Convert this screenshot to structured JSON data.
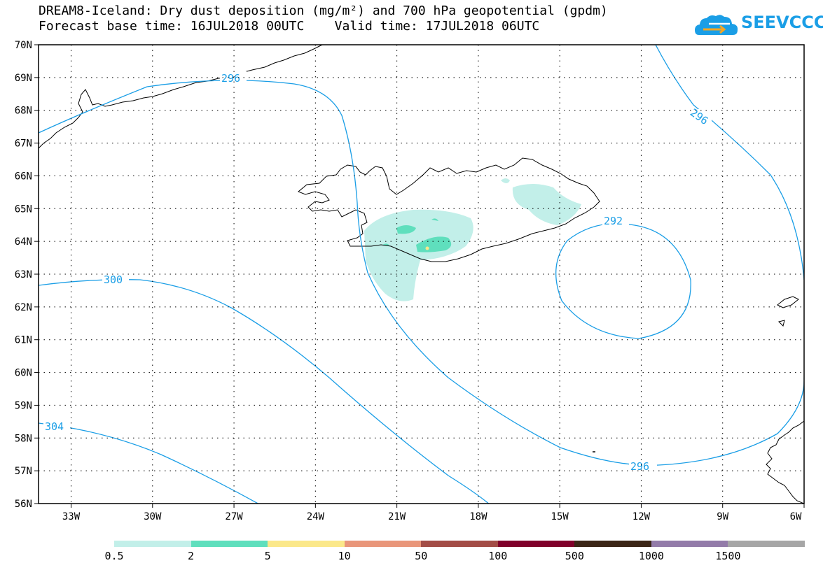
{
  "header": {
    "title_line1": "DREAM8-Iceland: Dry dust deposition (mg/m²) and 700 hPa geopotential (gpdm)",
    "title_line2": "Forecast base time: 16JUL2018 00UTC    Valid time: 17JUL2018 06UTC"
  },
  "logo": {
    "text": "SEEVCCC",
    "icon": "cloud-icon",
    "color": "#1a9ee6"
  },
  "map": {
    "lat_labels": [
      "70N",
      "69N",
      "68N",
      "67N",
      "66N",
      "65N",
      "64N",
      "63N",
      "62N",
      "61N",
      "60N",
      "59N",
      "58N",
      "57N",
      "56N"
    ],
    "lon_labels": [
      "33W",
      "30W",
      "27W",
      "24W",
      "21W",
      "18W",
      "15W",
      "12W",
      "9W",
      "6W"
    ],
    "contour_labels": [
      "296",
      "296",
      "292",
      "300",
      "304",
      "296"
    ],
    "contour_color": "#1a9ee6"
  },
  "legend": {
    "colors": [
      "#c2efe9",
      "#5fdfbd",
      "#fbe88a",
      "#e9967a",
      "#a34d46",
      "#80002a",
      "#3b2616",
      "#937ba9",
      "#a6a6a6"
    ],
    "labels": [
      "0.5",
      "2",
      "5",
      "10",
      "50",
      "100",
      "500",
      "1000",
      "1500"
    ]
  }
}
